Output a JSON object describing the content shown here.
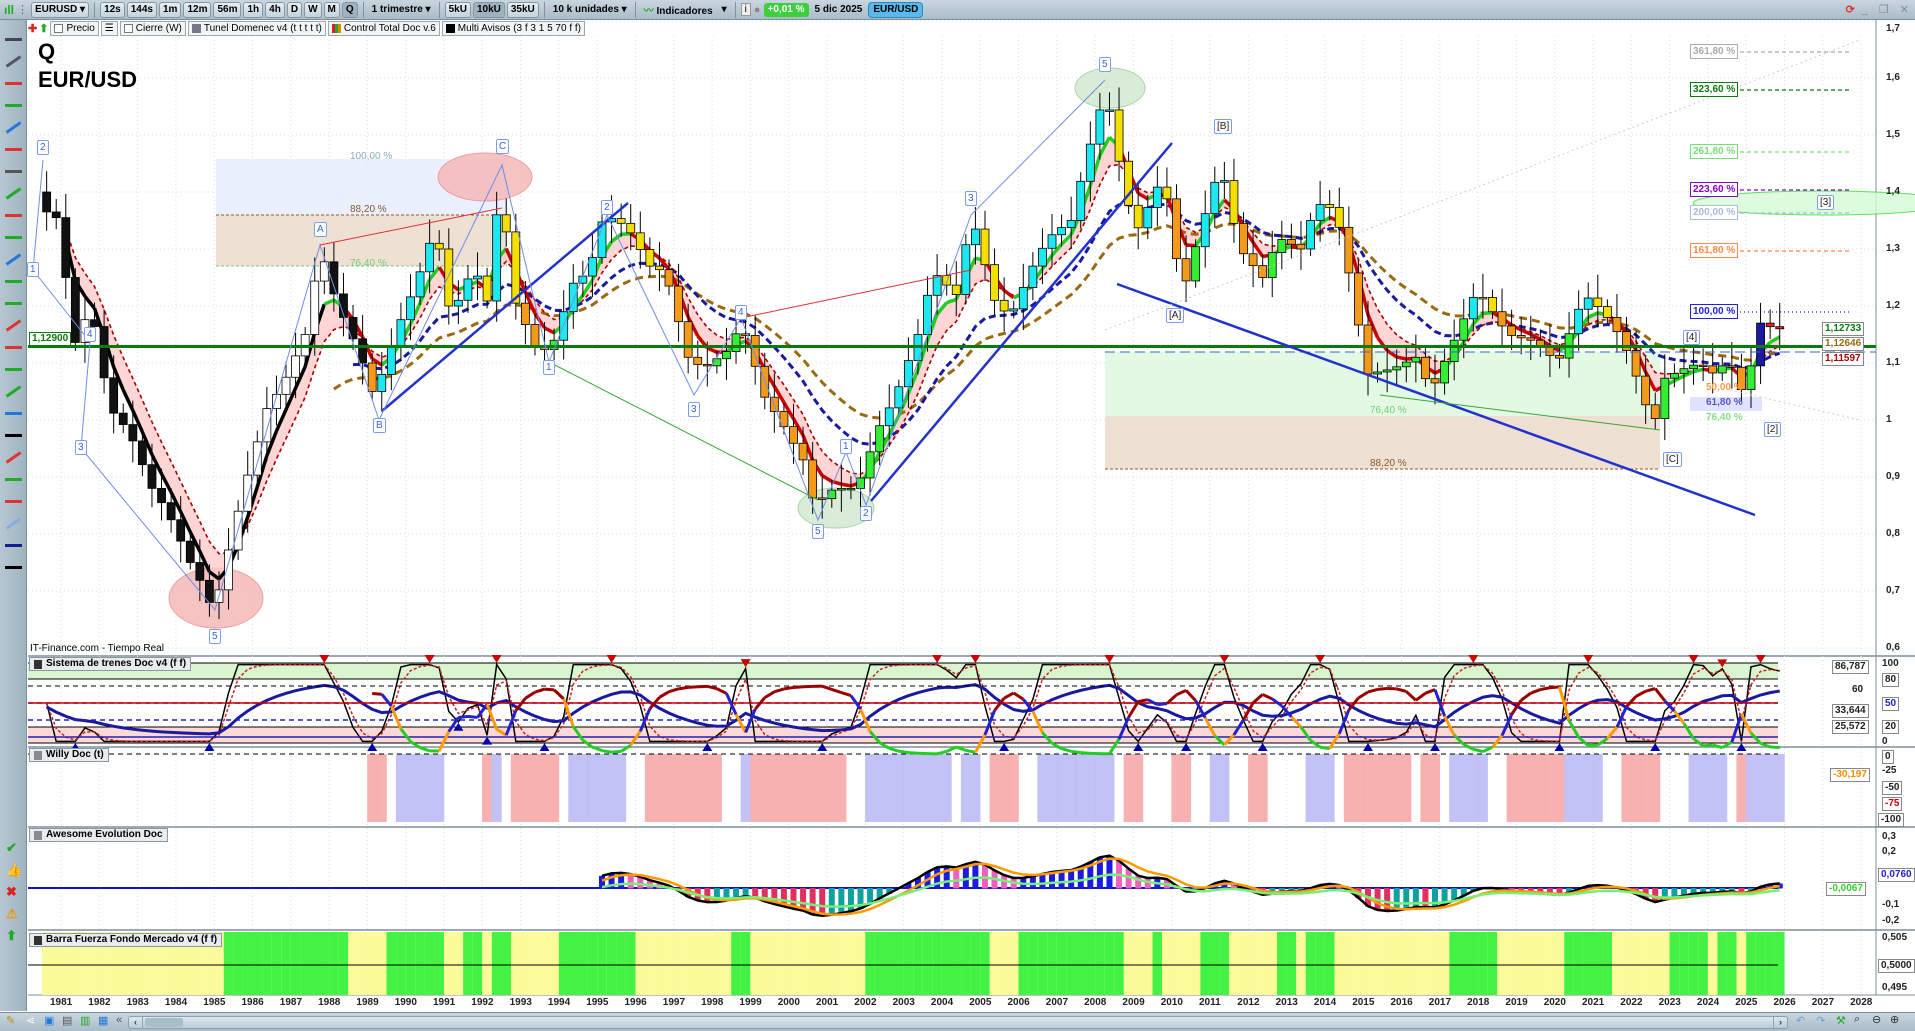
{
  "toolbar": {
    "symbol": "EURUSD",
    "intervals": [
      "12s",
      "144s",
      "1m",
      "12m",
      "56m",
      "1h",
      "4h",
      "D",
      "W",
      "M",
      "Q"
    ],
    "active_interval": "Q",
    "period": "1 trimestre",
    "units": [
      "5kU",
      "10kU",
      "35kU"
    ],
    "active_unit": "10kU",
    "unit_select": "10 k unidades",
    "indicators": "Indicadores",
    "change": "+0,01 %",
    "date": "5 dic 2025",
    "pair_badge": "EUR/USD"
  },
  "legend": {
    "items": [
      "Precio",
      "Cierre (W)",
      "Tunel Domenec v4 (t t t t t)",
      "Control Total Doc v.6",
      "Multi Avisos (3 f 3 1 5 70 f f)"
    ]
  },
  "chart": {
    "title_line1": "Q",
    "title_line2": "EUR/USD",
    "source": "IT-Finance.com - Tiempo Real",
    "hline_label": "1,12900",
    "price_axis": [
      "1,7",
      "1,6",
      "1,5",
      "1,4",
      "1,3",
      "1,2",
      "1,1",
      "1",
      "0,9",
      "0,8",
      "0,7",
      "0,6"
    ],
    "price_boxes": [
      "1,12733",
      "1,12646",
      "1,11597"
    ],
    "fib_right": [
      "361,80 %",
      "323,60 %",
      "261,80 %",
      "223,60 %",
      "200,00 %",
      "161,80 %",
      "100,00 %"
    ],
    "fib_left": [
      "100,00 %",
      "88,20 %",
      "76,40 %"
    ],
    "fib_mid": [
      "76,40 %",
      "88,20 %"
    ],
    "fib_small": [
      "50,00 %",
      "61,80 %",
      "76,40 %"
    ],
    "wave_labels": [
      "2",
      "1",
      "4",
      "3",
      "5",
      "A",
      "B",
      "C",
      "2",
      "1",
      "3",
      "4",
      "5",
      "1",
      "2",
      "3",
      "5",
      "[B]",
      "[A]",
      "[C]",
      "[4]",
      "[2]",
      "[3]"
    ]
  },
  "chart_data": {
    "type": "candlestick",
    "instrument": "EUR/USD",
    "timeframe": "Q",
    "price_path": [
      [
        1980.6,
        1.4
      ],
      [
        1980.9,
        1.33
      ],
      [
        1981.1,
        1.38
      ],
      [
        1981.4,
        1.12
      ],
      [
        1981.9,
        1.2
      ],
      [
        1982.4,
        1.02
      ],
      [
        1982.9,
        0.98
      ],
      [
        1983.5,
        0.88
      ],
      [
        1983.9,
        0.84
      ],
      [
        1984.5,
        0.75
      ],
      [
        1984.9,
        0.7
      ],
      [
        1985.1,
        0.66
      ],
      [
        1985.6,
        0.8
      ],
      [
        1985.9,
        0.88
      ],
      [
        1986.5,
        1.02
      ],
      [
        1986.9,
        1.06
      ],
      [
        1987.5,
        1.15
      ],
      [
        1987.9,
        1.3
      ],
      [
        1988.3,
        1.21
      ],
      [
        1988.9,
        1.12
      ],
      [
        1989.3,
        1.04
      ],
      [
        1989.9,
        1.16
      ],
      [
        1990.4,
        1.24
      ],
      [
        1990.9,
        1.34
      ],
      [
        1991.3,
        1.18
      ],
      [
        1991.9,
        1.27
      ],
      [
        1992.3,
        1.2
      ],
      [
        1992.6,
        1.44
      ],
      [
        1992.9,
        1.22
      ],
      [
        1993.5,
        1.13
      ],
      [
        1993.9,
        1.12
      ],
      [
        1994.5,
        1.24
      ],
      [
        1994.9,
        1.26
      ],
      [
        1995.3,
        1.36
      ],
      [
        1995.9,
        1.34
      ],
      [
        1996.5,
        1.27
      ],
      [
        1996.9,
        1.26
      ],
      [
        1997.5,
        1.11
      ],
      [
        1997.9,
        1.09
      ],
      [
        1998.5,
        1.12
      ],
      [
        1998.9,
        1.17
      ],
      [
        1999.5,
        1.04
      ],
      [
        1999.9,
        1.0
      ],
      [
        2000.5,
        0.93
      ],
      [
        2000.8,
        0.85
      ],
      [
        2001.3,
        0.88
      ],
      [
        2001.9,
        0.88
      ],
      [
        2002.5,
        0.99
      ],
      [
        2002.9,
        1.04
      ],
      [
        2003.5,
        1.15
      ],
      [
        2003.9,
        1.26
      ],
      [
        2004.5,
        1.22
      ],
      [
        2004.9,
        1.36
      ],
      [
        2005.5,
        1.21
      ],
      [
        2005.9,
        1.18
      ],
      [
        2006.5,
        1.27
      ],
      [
        2006.9,
        1.32
      ],
      [
        2007.5,
        1.35
      ],
      [
        2007.9,
        1.46
      ],
      [
        2008.4,
        1.58
      ],
      [
        2008.9,
        1.4
      ],
      [
        2009.2,
        1.33
      ],
      [
        2009.9,
        1.43
      ],
      [
        2010.4,
        1.22
      ],
      [
        2010.9,
        1.34
      ],
      [
        2011.4,
        1.45
      ],
      [
        2011.9,
        1.3
      ],
      [
        2012.5,
        1.25
      ],
      [
        2012.9,
        1.32
      ],
      [
        2013.5,
        1.3
      ],
      [
        2013.9,
        1.38
      ],
      [
        2014.4,
        1.37
      ],
      [
        2014.9,
        1.21
      ],
      [
        2015.2,
        1.08
      ],
      [
        2015.9,
        1.09
      ],
      [
        2016.5,
        1.11
      ],
      [
        2016.9,
        1.05
      ],
      [
        2017.5,
        1.14
      ],
      [
        2017.9,
        1.2
      ],
      [
        2018.1,
        1.23
      ],
      [
        2018.9,
        1.15
      ],
      [
        2019.5,
        1.14
      ],
      [
        2019.9,
        1.12
      ],
      [
        2020.2,
        1.1
      ],
      [
        2020.9,
        1.22
      ],
      [
        2021.4,
        1.19
      ],
      [
        2021.9,
        1.14
      ],
      [
        2022.4,
        1.05
      ],
      [
        2022.7,
        0.98
      ],
      [
        2022.9,
        1.07
      ],
      [
        2023.5,
        1.09
      ],
      [
        2023.9,
        1.1
      ],
      [
        2024.3,
        1.08
      ],
      [
        2024.7,
        1.11
      ],
      [
        2024.9,
        1.04
      ],
      [
        2025.2,
        1.08
      ],
      [
        2025.5,
        1.17
      ],
      [
        2025.9,
        1.16
      ]
    ],
    "xlim": [
      1980.5,
      2028.5
    ],
    "ylim": [
      0.6,
      1.7
    ],
    "x_ticks": [
      "1981",
      "1982",
      "1983",
      "1984",
      "1985",
      "1986",
      "1987",
      "1988",
      "1989",
      "1990",
      "1991",
      "1992",
      "1993",
      "1994",
      "1995",
      "1996",
      "1997",
      "1998",
      "1999",
      "2000",
      "2001",
      "2002",
      "2003",
      "2004",
      "2005",
      "2006",
      "2007",
      "2008",
      "2009",
      "2010",
      "2011",
      "2012",
      "2013",
      "2014",
      "2015",
      "2016",
      "2017",
      "2018",
      "2019",
      "2020",
      "2021",
      "2022",
      "2023",
      "2024",
      "2025",
      "2026",
      "2027",
      "2028"
    ],
    "hline": 1.129,
    "colors": {
      "hline": "#0a7a0a",
      "trend": "#2233cc",
      "fast_ma_down": "#cc0000",
      "fast_ma_up": "#22cc22",
      "slow_ma": "#9a6a10",
      "ma_fill": "#ffc8c8"
    }
  },
  "panels": [
    {
      "title": "Sistema de trenes Doc v4 (f f)",
      "axis": [
        "100",
        "86,787",
        "80",
        "60",
        "50",
        "33,644",
        "25,572",
        "20",
        "0"
      ]
    },
    {
      "title": "Willy Doc (t)",
      "axis": [
        "0",
        "-25",
        "-30,197",
        "-50",
        "-75",
        "-100"
      ]
    },
    {
      "title": "Awesome Evolution Doc",
      "axis": [
        "0,3",
        "0,2",
        "0,0760",
        "-0,0067",
        "-0,1",
        "-0,2"
      ]
    },
    {
      "title": "Barra Fuerza Fondo Mercado v4 (f f)",
      "axis": [
        "0,505",
        "0,5000",
        "0,495"
      ]
    }
  ]
}
